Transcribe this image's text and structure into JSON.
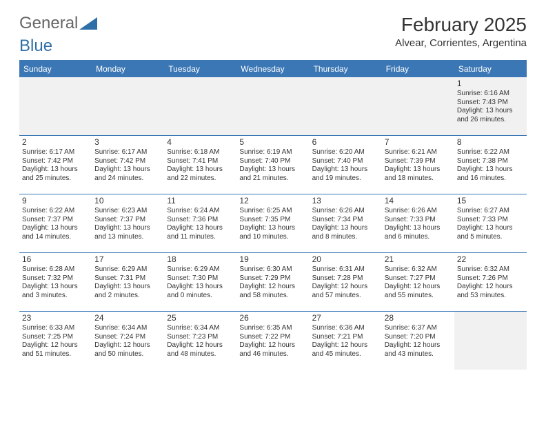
{
  "logo": {
    "text1": "General",
    "text2": "Blue"
  },
  "title": "February 2025",
  "location": "Alvear, Corrientes, Argentina",
  "colors": {
    "header_bg": "#3b77b5",
    "text": "#333333",
    "logo_blue": "#2f6fa8"
  },
  "dayHeaders": [
    "Sunday",
    "Monday",
    "Tuesday",
    "Wednesday",
    "Thursday",
    "Friday",
    "Saturday"
  ],
  "weeks": [
    [
      null,
      null,
      null,
      null,
      null,
      null,
      {
        "n": "1",
        "sr": "Sunrise: 6:16 AM",
        "ss": "Sunset: 7:43 PM",
        "dl": "Daylight: 13 hours and 26 minutes."
      }
    ],
    [
      {
        "n": "2",
        "sr": "Sunrise: 6:17 AM",
        "ss": "Sunset: 7:42 PM",
        "dl": "Daylight: 13 hours and 25 minutes."
      },
      {
        "n": "3",
        "sr": "Sunrise: 6:17 AM",
        "ss": "Sunset: 7:42 PM",
        "dl": "Daylight: 13 hours and 24 minutes."
      },
      {
        "n": "4",
        "sr": "Sunrise: 6:18 AM",
        "ss": "Sunset: 7:41 PM",
        "dl": "Daylight: 13 hours and 22 minutes."
      },
      {
        "n": "5",
        "sr": "Sunrise: 6:19 AM",
        "ss": "Sunset: 7:40 PM",
        "dl": "Daylight: 13 hours and 21 minutes."
      },
      {
        "n": "6",
        "sr": "Sunrise: 6:20 AM",
        "ss": "Sunset: 7:40 PM",
        "dl": "Daylight: 13 hours and 19 minutes."
      },
      {
        "n": "7",
        "sr": "Sunrise: 6:21 AM",
        "ss": "Sunset: 7:39 PM",
        "dl": "Daylight: 13 hours and 18 minutes."
      },
      {
        "n": "8",
        "sr": "Sunrise: 6:22 AM",
        "ss": "Sunset: 7:38 PM",
        "dl": "Daylight: 13 hours and 16 minutes."
      }
    ],
    [
      {
        "n": "9",
        "sr": "Sunrise: 6:22 AM",
        "ss": "Sunset: 7:37 PM",
        "dl": "Daylight: 13 hours and 14 minutes."
      },
      {
        "n": "10",
        "sr": "Sunrise: 6:23 AM",
        "ss": "Sunset: 7:37 PM",
        "dl": "Daylight: 13 hours and 13 minutes."
      },
      {
        "n": "11",
        "sr": "Sunrise: 6:24 AM",
        "ss": "Sunset: 7:36 PM",
        "dl": "Daylight: 13 hours and 11 minutes."
      },
      {
        "n": "12",
        "sr": "Sunrise: 6:25 AM",
        "ss": "Sunset: 7:35 PM",
        "dl": "Daylight: 13 hours and 10 minutes."
      },
      {
        "n": "13",
        "sr": "Sunrise: 6:26 AM",
        "ss": "Sunset: 7:34 PM",
        "dl": "Daylight: 13 hours and 8 minutes."
      },
      {
        "n": "14",
        "sr": "Sunrise: 6:26 AM",
        "ss": "Sunset: 7:33 PM",
        "dl": "Daylight: 13 hours and 6 minutes."
      },
      {
        "n": "15",
        "sr": "Sunrise: 6:27 AM",
        "ss": "Sunset: 7:33 PM",
        "dl": "Daylight: 13 hours and 5 minutes."
      }
    ],
    [
      {
        "n": "16",
        "sr": "Sunrise: 6:28 AM",
        "ss": "Sunset: 7:32 PM",
        "dl": "Daylight: 13 hours and 3 minutes."
      },
      {
        "n": "17",
        "sr": "Sunrise: 6:29 AM",
        "ss": "Sunset: 7:31 PM",
        "dl": "Daylight: 13 hours and 2 minutes."
      },
      {
        "n": "18",
        "sr": "Sunrise: 6:29 AM",
        "ss": "Sunset: 7:30 PM",
        "dl": "Daylight: 13 hours and 0 minutes."
      },
      {
        "n": "19",
        "sr": "Sunrise: 6:30 AM",
        "ss": "Sunset: 7:29 PM",
        "dl": "Daylight: 12 hours and 58 minutes."
      },
      {
        "n": "20",
        "sr": "Sunrise: 6:31 AM",
        "ss": "Sunset: 7:28 PM",
        "dl": "Daylight: 12 hours and 57 minutes."
      },
      {
        "n": "21",
        "sr": "Sunrise: 6:32 AM",
        "ss": "Sunset: 7:27 PM",
        "dl": "Daylight: 12 hours and 55 minutes."
      },
      {
        "n": "22",
        "sr": "Sunrise: 6:32 AM",
        "ss": "Sunset: 7:26 PM",
        "dl": "Daylight: 12 hours and 53 minutes."
      }
    ],
    [
      {
        "n": "23",
        "sr": "Sunrise: 6:33 AM",
        "ss": "Sunset: 7:25 PM",
        "dl": "Daylight: 12 hours and 51 minutes."
      },
      {
        "n": "24",
        "sr": "Sunrise: 6:34 AM",
        "ss": "Sunset: 7:24 PM",
        "dl": "Daylight: 12 hours and 50 minutes."
      },
      {
        "n": "25",
        "sr": "Sunrise: 6:34 AM",
        "ss": "Sunset: 7:23 PM",
        "dl": "Daylight: 12 hours and 48 minutes."
      },
      {
        "n": "26",
        "sr": "Sunrise: 6:35 AM",
        "ss": "Sunset: 7:22 PM",
        "dl": "Daylight: 12 hours and 46 minutes."
      },
      {
        "n": "27",
        "sr": "Sunrise: 6:36 AM",
        "ss": "Sunset: 7:21 PM",
        "dl": "Daylight: 12 hours and 45 minutes."
      },
      {
        "n": "28",
        "sr": "Sunrise: 6:37 AM",
        "ss": "Sunset: 7:20 PM",
        "dl": "Daylight: 12 hours and 43 minutes."
      },
      null
    ]
  ]
}
